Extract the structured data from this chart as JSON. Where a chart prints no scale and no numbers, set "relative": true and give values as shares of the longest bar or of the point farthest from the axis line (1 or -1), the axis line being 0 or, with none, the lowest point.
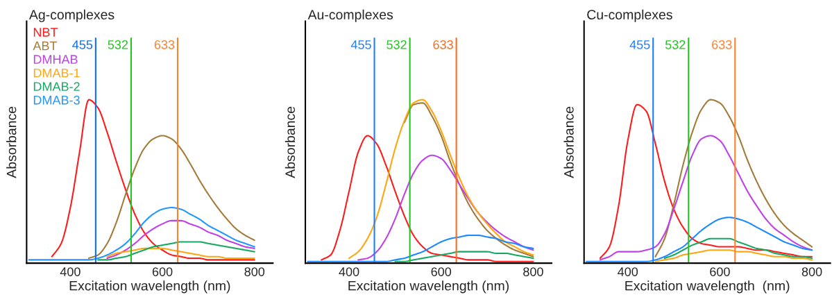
{
  "chart_data": [
    {
      "type": "line",
      "title": "Ag-complexes",
      "xlabel": "Excitation wavelength (nm)",
      "ylabel": "Absorbance",
      "relative": true,
      "xlim": [
        305,
        840
      ],
      "xticks": [
        400,
        600,
        800
      ],
      "legend": "top left",
      "grid": false,
      "x": [
        310,
        320,
        340,
        360,
        380,
        400,
        420,
        440,
        460,
        480,
        500,
        520,
        540,
        560,
        580,
        600,
        620,
        640,
        660,
        680,
        700,
        720,
        740,
        760,
        780,
        800
      ],
      "ref_lines": [
        {
          "axis": "x",
          "value": 455,
          "label": "455",
          "color": "#0f6ef5"
        },
        {
          "axis": "x",
          "value": 532,
          "label": "532",
          "color": "#22c422"
        },
        {
          "axis": "x",
          "value": 633,
          "label": "633",
          "color": "#ff7f2a"
        }
      ],
      "series": [
        {
          "name": "NBT",
          "color": "#ff1a1a",
          "values": [
            null,
            null,
            null,
            0.04,
            0.12,
            0.34,
            0.68,
            1.0,
            0.95,
            0.8,
            0.62,
            0.45,
            0.3,
            0.19,
            0.12,
            0.08,
            0.05,
            0.04,
            0.03,
            0.03,
            0.02,
            0.02,
            0.02,
            0.02,
            0.02,
            0.02
          ]
        },
        {
          "name": "ABT",
          "color": "#a27b38",
          "values": [
            null,
            null,
            null,
            null,
            null,
            null,
            null,
            0.03,
            0.05,
            0.12,
            0.25,
            0.42,
            0.58,
            0.7,
            0.76,
            0.78,
            0.76,
            0.7,
            0.61,
            0.51,
            0.42,
            0.34,
            0.27,
            0.21,
            0.17,
            0.14
          ]
        },
        {
          "name": "DMHAB",
          "color": "#c040e8",
          "values": [
            null,
            null,
            null,
            null,
            null,
            null,
            null,
            null,
            null,
            0.03,
            0.05,
            0.08,
            0.12,
            0.17,
            0.21,
            0.24,
            0.26,
            0.26,
            0.24,
            0.22,
            0.19,
            0.17,
            0.14,
            0.12,
            0.1,
            0.09
          ]
        },
        {
          "name": "DMAB-1",
          "color": "#ffa510",
          "values": [
            null,
            null,
            null,
            null,
            null,
            null,
            null,
            null,
            null,
            0.04,
            0.06,
            0.07,
            0.08,
            0.09,
            0.09,
            0.09,
            0.08,
            0.07,
            0.06,
            0.05,
            0.04,
            0.04,
            0.03,
            0.03,
            0.03,
            0.03
          ]
        },
        {
          "name": "DMAB-2",
          "color": "#14a860",
          "values": [
            null,
            null,
            null,
            null,
            null,
            null,
            null,
            null,
            0.02,
            0.02,
            0.03,
            0.04,
            0.06,
            0.08,
            0.1,
            0.11,
            0.12,
            0.13,
            0.13,
            0.13,
            0.12,
            0.11,
            0.1,
            0.09,
            0.08,
            0.07
          ]
        },
        {
          "name": "DMAB-3",
          "color": "#2196ff",
          "values": [
            0.02,
            0.02,
            0.02,
            0.02,
            0.02,
            0.02,
            0.02,
            0.02,
            0.03,
            0.05,
            0.08,
            0.12,
            0.18,
            0.25,
            0.3,
            0.33,
            0.34,
            0.33,
            0.3,
            0.27,
            0.23,
            0.2,
            0.17,
            0.14,
            0.12,
            0.1
          ]
        }
      ]
    },
    {
      "type": "line",
      "title": "Au-complexes",
      "xlabel": "Excitation wavelength (nm)",
      "ylabel": "Absorbance",
      "relative": true,
      "xlim": [
        305,
        840
      ],
      "xticks": [
        400,
        600,
        800
      ],
      "grid": false,
      "x": [
        310,
        320,
        340,
        360,
        380,
        400,
        420,
        440,
        460,
        480,
        500,
        520,
        540,
        560,
        580,
        600,
        620,
        640,
        660,
        680,
        700,
        720,
        740,
        760,
        780,
        800
      ],
      "ref_lines": [
        {
          "axis": "x",
          "value": 455,
          "label": "455",
          "color": "#1a7fff"
        },
        {
          "axis": "x",
          "value": 532,
          "label": "532",
          "color": "#22c422"
        },
        {
          "axis": "x",
          "value": 633,
          "label": "633",
          "color": "#ff6a1a"
        }
      ],
      "series": [
        {
          "color": "#ff1a1a",
          "values": [
            null,
            null,
            0.02,
            0.05,
            0.2,
            0.44,
            0.68,
            0.78,
            0.73,
            0.6,
            0.44,
            0.29,
            0.17,
            0.1,
            0.06,
            0.05,
            0.04,
            0.03,
            0.02,
            0.02,
            0.02,
            0.01,
            0.01,
            0.01,
            0.01,
            0.01
          ]
        },
        {
          "color": "#a27b38",
          "values": [
            null,
            null,
            null,
            null,
            null,
            null,
            null,
            null,
            null,
            null,
            null,
            0.86,
            0.97,
            0.98,
            0.9,
            0.78,
            0.62,
            0.48,
            0.36,
            0.27,
            0.2,
            0.15,
            0.11,
            0.08,
            0.06,
            0.04
          ]
        },
        {
          "color": "#c040e8",
          "values": [
            null,
            null,
            null,
            null,
            null,
            null,
            0.02,
            0.03,
            0.07,
            0.15,
            0.27,
            0.42,
            0.55,
            0.63,
            0.66,
            0.64,
            0.57,
            0.48,
            0.39,
            0.31,
            0.25,
            0.2,
            0.16,
            0.13,
            0.1,
            0.08
          ]
        },
        {
          "color": "#ffa510",
          "values": [
            null,
            null,
            null,
            null,
            null,
            0.03,
            0.07,
            0.15,
            0.28,
            0.48,
            0.7,
            0.87,
            0.98,
            1.0,
            0.93,
            0.81,
            0.66,
            0.52,
            0.4,
            0.31,
            0.24,
            0.18,
            0.13,
            0.1,
            0.07,
            0.05
          ]
        },
        {
          "color": "#14a860",
          "values": [
            null,
            null,
            null,
            null,
            null,
            null,
            null,
            null,
            null,
            null,
            0.01,
            0.01,
            0.02,
            0.03,
            0.04,
            0.05,
            0.06,
            0.07,
            0.07,
            0.07,
            0.07,
            0.06,
            0.06,
            0.05,
            0.04,
            0.03
          ]
        },
        {
          "color": "#1a88ff",
          "values": [
            0.01,
            0.01,
            0.01,
            0.01,
            0.01,
            0.01,
            0.01,
            0.01,
            0.01,
            0.01,
            0.02,
            0.03,
            0.05,
            0.07,
            0.1,
            0.13,
            0.15,
            0.16,
            0.17,
            0.17,
            0.16,
            0.15,
            0.13,
            0.12,
            0.1,
            0.09
          ]
        }
      ]
    },
    {
      "type": "line",
      "title": "Cu-complexes",
      "xlabel": "Excitation wavelength  (nm)",
      "ylabel": "Absorbance",
      "relative": true,
      "xlim": [
        305,
        840
      ],
      "xticks": [
        400,
        600,
        800
      ],
      "grid": false,
      "x": [
        310,
        320,
        340,
        360,
        380,
        400,
        420,
        440,
        460,
        480,
        500,
        520,
        540,
        560,
        580,
        600,
        620,
        640,
        660,
        680,
        700,
        720,
        740,
        760,
        780,
        800
      ],
      "ref_lines": [
        {
          "axis": "x",
          "value": 455,
          "label": "455",
          "color": "#1a7fff"
        },
        {
          "axis": "x",
          "value": 532,
          "label": "532",
          "color": "#22c422"
        },
        {
          "axis": "x",
          "value": 633,
          "label": "633",
          "color": "#ff7f2a"
        }
      ],
      "series": [
        {
          "color": "#ff1a1a",
          "values": [
            null,
            null,
            0.03,
            0.1,
            0.35,
            0.75,
            0.97,
            0.93,
            0.73,
            0.5,
            0.33,
            0.22,
            0.15,
            0.12,
            0.11,
            0.1,
            0.1,
            0.1,
            0.09,
            0.08,
            0.08,
            0.07,
            0.06,
            0.05,
            0.04,
            0.04
          ]
        },
        {
          "color": "#a27b38",
          "values": [
            null,
            null,
            null,
            null,
            null,
            null,
            null,
            null,
            0.04,
            0.15,
            0.36,
            0.6,
            0.8,
            0.94,
            1.0,
            0.98,
            0.9,
            0.78,
            0.63,
            0.5,
            0.39,
            0.3,
            0.23,
            0.18,
            0.14,
            0.1
          ]
        },
        {
          "color": "#c040e8",
          "values": [
            null,
            null,
            0.02,
            0.04,
            0.07,
            0.07,
            0.07,
            0.08,
            0.1,
            0.18,
            0.33,
            0.5,
            0.66,
            0.76,
            0.78,
            0.75,
            0.66,
            0.55,
            0.44,
            0.35,
            0.27,
            0.21,
            0.17,
            0.13,
            0.1,
            0.08
          ]
        },
        {
          "color": "#ffa510",
          "values": [
            null,
            null,
            null,
            null,
            null,
            null,
            null,
            null,
            0.01,
            0.02,
            0.03,
            0.05,
            0.06,
            0.07,
            0.08,
            0.08,
            0.08,
            0.07,
            0.07,
            0.06,
            0.05,
            0.04,
            0.04,
            0.03,
            0.03,
            0.02
          ]
        },
        {
          "color": "#14a860",
          "values": [
            null,
            null,
            null,
            null,
            null,
            null,
            null,
            null,
            null,
            0.03,
            0.05,
            0.08,
            0.11,
            0.13,
            0.15,
            0.15,
            0.15,
            0.13,
            0.11,
            0.09,
            0.08,
            0.06,
            0.05,
            0.04,
            0.04,
            0.03
          ]
        },
        {
          "color": "#1a88ff",
          "values": [
            0.01,
            0.01,
            0.01,
            0.01,
            0.01,
            0.01,
            0.01,
            0.01,
            0.02,
            0.04,
            0.07,
            0.1,
            0.15,
            0.2,
            0.24,
            0.27,
            0.28,
            0.27,
            0.25,
            0.22,
            0.19,
            0.16,
            0.13,
            0.11,
            0.09,
            0.08
          ]
        }
      ]
    }
  ]
}
